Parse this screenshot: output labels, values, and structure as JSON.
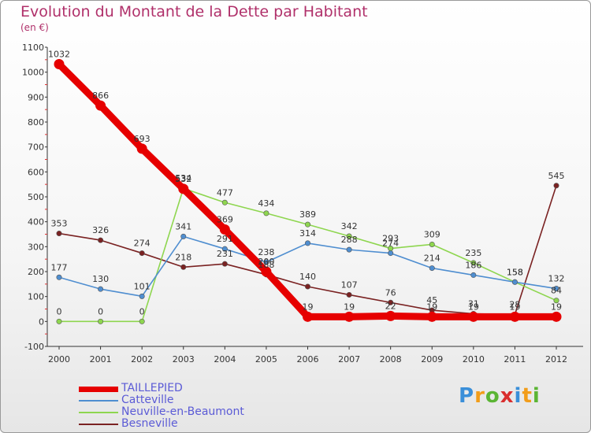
{
  "title": "Evolution du Montant de la Dette par Habitant",
  "subtitle": "(en €)",
  "logo_text": "Proxiti",
  "chart_data": {
    "type": "line",
    "title": "Evolution du Montant de la Dette par Habitant",
    "subtitle": "(en €)",
    "x": [
      "2000",
      "2001",
      "2002",
      "2003",
      "2004",
      "2005",
      "2006",
      "2007",
      "2008",
      "2009",
      "2010",
      "2011",
      "2012"
    ],
    "ylim": [
      -100,
      1100
    ],
    "yticks": [
      -100,
      0,
      100,
      200,
      300,
      400,
      500,
      600,
      700,
      800,
      900,
      1000,
      1100
    ],
    "grid": false,
    "legend_position": "bottom-left",
    "series": [
      {
        "name": "TAILLEPIED",
        "color": "#e60000",
        "values": [
          1032,
          866,
          693,
          532,
          369,
          200,
          19,
          19,
          22,
          19,
          19,
          19,
          19
        ],
        "labels": [
          "1032",
          "866",
          "693",
          "532",
          "369",
          "200",
          "19",
          "19",
          "22",
          "19",
          "19",
          "19",
          "19"
        ]
      },
      {
        "name": "Catteville",
        "color": "#4f8ed0",
        "values": [
          177,
          130,
          101,
          341,
          291,
          238,
          314,
          288,
          274,
          214,
          186,
          158,
          132
        ],
        "labels": [
          "177",
          "130",
          "101",
          "341",
          "291",
          "238",
          "314",
          "288",
          "274",
          "214",
          "186",
          "158",
          "132"
        ]
      },
      {
        "name": "Neuville-en-Beaumont",
        "color": "#8ed64f",
        "values": [
          0,
          0,
          0,
          534,
          477,
          434,
          389,
          342,
          293,
          309,
          235,
          158,
          84
        ],
        "labels": [
          "0",
          "0",
          "0",
          "534",
          "477",
          "434",
          "389",
          "342",
          "293",
          "309",
          "235",
          "158",
          "84"
        ]
      },
      {
        "name": "Besneville",
        "color": "#7a2222",
        "values": [
          353,
          326,
          274,
          218,
          231,
          188,
          140,
          107,
          76,
          45,
          31,
          28,
          545
        ],
        "labels": [
          "353",
          "326",
          "274",
          "218",
          "231",
          "188",
          "140",
          "107",
          "76",
          "45",
          "31",
          "28",
          "545"
        ]
      }
    ]
  }
}
